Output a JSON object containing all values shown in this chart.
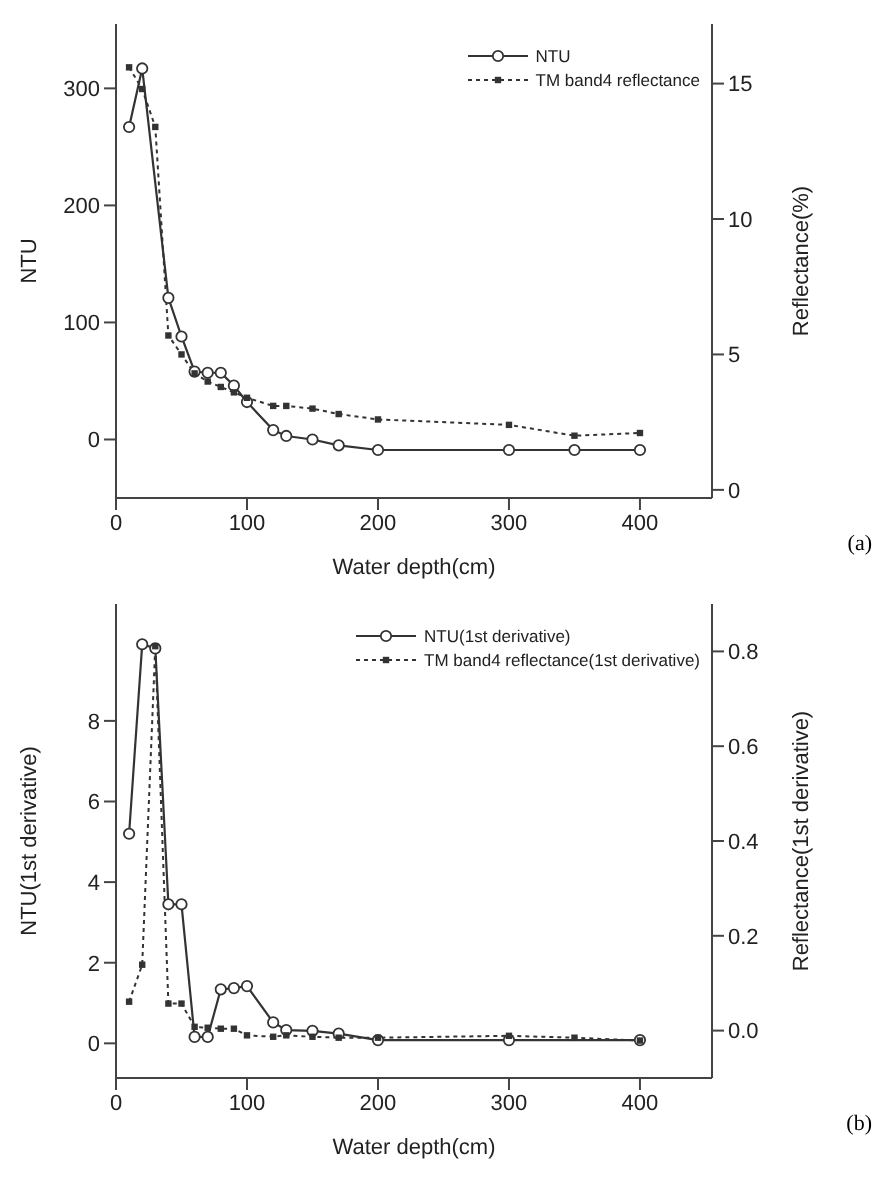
{
  "chart_data": [
    {
      "type": "line",
      "xlabel": "Water depth(cm)",
      "ylabel": "NTU",
      "y2label": "Reflectance(%)",
      "annotations": [
        "(a)"
      ],
      "xlim": [
        0,
        455
      ],
      "xticks": [
        0,
        100,
        200,
        300,
        400
      ],
      "ylim": [
        -50,
        355
      ],
      "yticks": [
        0,
        100,
        200,
        300
      ],
      "y2lim": [
        -0.3,
        17.2
      ],
      "y2ticks": [
        0,
        5,
        10,
        15
      ],
      "legend": "top right",
      "grid": false,
      "series": [
        {
          "name": "NTU",
          "color": "#333333",
          "marker": "circle",
          "line_style": "solid",
          "x": [
            10,
            20,
            40,
            50,
            60,
            70,
            80,
            90,
            100,
            120,
            130,
            150,
            170,
            200,
            300,
            350,
            400
          ],
          "values": [
            267,
            317,
            121,
            88,
            58,
            57,
            57,
            46,
            32,
            8,
            3,
            0,
            -5,
            -9,
            -9,
            -9,
            -9
          ]
        },
        {
          "name": "TM band4 reflectance",
          "color": "#333333",
          "marker": "square",
          "line_style": "dotted",
          "axis": "y2",
          "x": [
            10,
            20,
            30,
            40,
            50,
            60,
            70,
            80,
            90,
            100,
            120,
            130,
            150,
            170,
            200,
            300,
            350,
            400
          ],
          "values": [
            15.6,
            14.8,
            13.4,
            5.7,
            5.0,
            4.3,
            4.0,
            3.8,
            3.6,
            3.4,
            3.1,
            3.1,
            3.0,
            2.8,
            2.6,
            2.4,
            2.0,
            2.1
          ]
        }
      ]
    },
    {
      "type": "line",
      "xlabel": "Water depth(cm)",
      "ylabel": "NTU(1st derivative)",
      "y2label": "Reflectance(1st derivative)",
      "annotations": [
        "(b)"
      ],
      "xlim": [
        0,
        455
      ],
      "xticks": [
        0,
        100,
        200,
        300,
        400
      ],
      "ylim": [
        -0.86,
        10.9
      ],
      "yticks": [
        0,
        2,
        4,
        6,
        8
      ],
      "y2lim": [
        -0.1,
        0.9
      ],
      "y2ticks": [
        {
          "value": 0,
          "label": "0.0"
        },
        0.2,
        0.4,
        0.6,
        0.8
      ],
      "legend": "top right",
      "grid": false,
      "series": [
        {
          "name": "NTU(1st derivative)",
          "color": "#333333",
          "marker": "circle",
          "line_style": "solid",
          "x": [
            10,
            20,
            30,
            40,
            50,
            60,
            70,
            80,
            90,
            100,
            120,
            130,
            150,
            170,
            200,
            300,
            400
          ],
          "values": [
            5.2,
            9.9,
            9.8,
            3.45,
            3.45,
            0.16,
            0.16,
            1.34,
            1.37,
            1.42,
            0.52,
            0.33,
            0.31,
            0.24,
            0.08,
            0.08,
            0.08
          ]
        },
        {
          "name": "TM band4 reflectance(1st derivative)",
          "color": "#333333",
          "marker": "square",
          "line_style": "dotted",
          "axis": "y2",
          "x": [
            10,
            20,
            30,
            40,
            50,
            60,
            70,
            80,
            90,
            100,
            120,
            130,
            150,
            170,
            200,
            300,
            350,
            400
          ],
          "values": [
            0.061,
            0.139,
            0.811,
            0.057,
            0.057,
            0.008,
            0.006,
            0.004,
            0.004,
            -0.01,
            -0.013,
            -0.01,
            -0.013,
            -0.015,
            -0.015,
            -0.011,
            -0.015,
            -0.021
          ]
        }
      ]
    }
  ]
}
